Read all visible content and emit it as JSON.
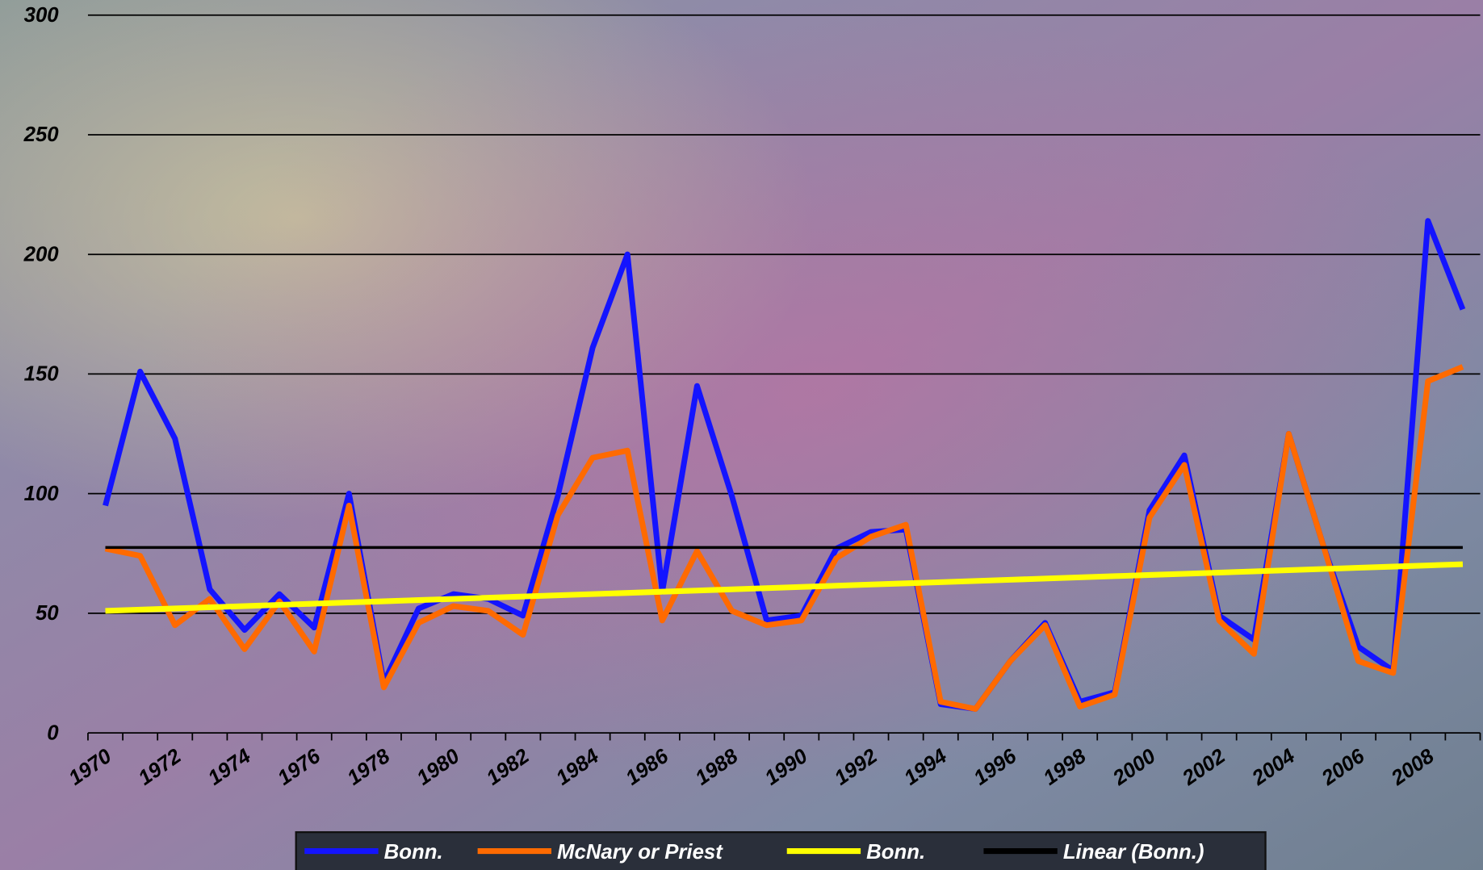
{
  "chart_data": {
    "type": "line",
    "categories": [
      "1970",
      null,
      "1972",
      null,
      "1974",
      null,
      "1976",
      null,
      "1978",
      null,
      "1980",
      null,
      "1982",
      null,
      "1984",
      null,
      "1986",
      null,
      "1988",
      null,
      "1990",
      null,
      "1992",
      null,
      "1994",
      null,
      "1996",
      null,
      "1998",
      null,
      "2000",
      null,
      "2002",
      null,
      "2004",
      null,
      "2006",
      null,
      "2008",
      null
    ],
    "series": [
      {
        "name": "Bonn.",
        "color": "#1414ff",
        "values": [
          95,
          151,
          123,
          60,
          43,
          58,
          44,
          100,
          21,
          52,
          58,
          56,
          49,
          99,
          161,
          200,
          59,
          145,
          99,
          47,
          49,
          77,
          84,
          85,
          12,
          10,
          30,
          46,
          13,
          17,
          93,
          116,
          49,
          39,
          125,
          78,
          36,
          26,
          214,
          177
        ]
      },
      {
        "name": "McNary or Priest",
        "color": "#ff6a00",
        "values": [
          77,
          74,
          45,
          56,
          35,
          55,
          34,
          95,
          19,
          46,
          53,
          51,
          41,
          91,
          115,
          118,
          47,
          76,
          51,
          45,
          47,
          73,
          82,
          87,
          13,
          10,
          30,
          45,
          11,
          16,
          90,
          112,
          47,
          33,
          125,
          78,
          30,
          25,
          147,
          153
        ]
      },
      {
        "name": "Bonn.",
        "color": "#ffff00",
        "values": [
          51,
          51.5,
          52,
          52.5,
          53,
          53.5,
          54,
          54.5,
          55,
          55.5,
          56,
          56.5,
          57,
          57.5,
          58,
          58.5,
          59,
          59.5,
          60,
          60.5,
          61,
          61.5,
          62,
          62.5,
          63,
          63.5,
          64,
          64.5,
          65,
          65.5,
          66,
          66.5,
          67,
          67.5,
          68,
          68.5,
          69,
          69.5,
          70,
          70.5
        ]
      },
      {
        "name": "Linear (Bonn.)",
        "color": "#000000",
        "values": [
          77.5,
          77.5,
          77.5,
          77.5,
          77.5,
          77.5,
          77.5,
          77.5,
          77.5,
          77.5,
          77.5,
          77.5,
          77.5,
          77.5,
          77.5,
          77.5,
          77.5,
          77.5,
          77.5,
          77.5,
          77.5,
          77.5,
          77.5,
          77.5,
          77.5,
          77.5,
          77.5,
          77.5,
          77.5,
          77.5,
          77.5,
          77.5,
          77.5,
          77.5,
          77.5,
          77.5,
          77.5,
          77.5,
          77.5,
          77.5
        ]
      }
    ],
    "ylim": [
      0,
      300
    ],
    "yticks": [
      0,
      50,
      100,
      150,
      200,
      250,
      300
    ],
    "grid": true,
    "legend": "bottom"
  }
}
